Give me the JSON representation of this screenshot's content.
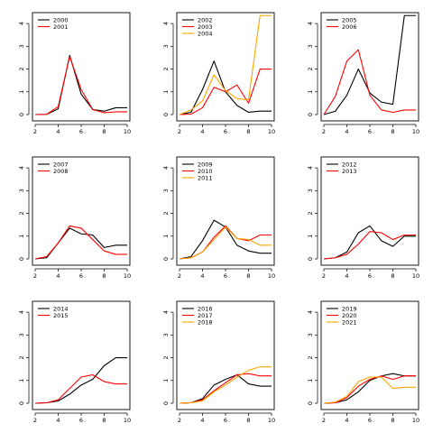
{
  "chart_data": [
    {
      "type": "line",
      "x": [
        2,
        3,
        4,
        5,
        6,
        7,
        8,
        9,
        10
      ],
      "xlim": [
        2,
        10
      ],
      "ylim": [
        0,
        4.4
      ],
      "xticks": [
        "2",
        "4",
        "6",
        "8",
        "10"
      ],
      "yticks": [
        "0",
        "1",
        "2",
        "3",
        "4"
      ],
      "legend_position": "top-left",
      "series": [
        {
          "name": "2000",
          "color": "#000000",
          "values": [
            0,
            0.01,
            0.25,
            2.6,
            0.9,
            0.22,
            0.15,
            0.3,
            0.3
          ]
        },
        {
          "name": "2001",
          "color": "#ff0000",
          "values": [
            0,
            0.01,
            0.35,
            2.55,
            1.1,
            0.22,
            0.08,
            0.12,
            0.12
          ]
        }
      ]
    },
    {
      "type": "line",
      "x": [
        2,
        3,
        4,
        5,
        6,
        7,
        8,
        9,
        10
      ],
      "xlim": [
        2,
        10
      ],
      "ylim": [
        0,
        4.4
      ],
      "xticks": [
        "2",
        "4",
        "6",
        "8",
        "10"
      ],
      "yticks": [
        "0",
        "1",
        "2",
        "3",
        "4"
      ],
      "legend_position": "top-left",
      "series": [
        {
          "name": "2002",
          "color": "#000000",
          "values": [
            0,
            0.1,
            1.1,
            2.35,
            1.0,
            0.4,
            0.1,
            0.15,
            0.15
          ]
        },
        {
          "name": "2003",
          "color": "#ff0000",
          "values": [
            0,
            0.02,
            0.3,
            1.2,
            1.0,
            1.3,
            0.5,
            2.0,
            2.0
          ]
        },
        {
          "name": "2004",
          "color": "#ffa500",
          "values": [
            0,
            0.2,
            0.6,
            1.75,
            1.05,
            0.7,
            0.65,
            4.35,
            4.35
          ]
        }
      ]
    },
    {
      "type": "line",
      "x": [
        2,
        3,
        4,
        5,
        6,
        7,
        8,
        9,
        10
      ],
      "xlim": [
        2,
        10
      ],
      "ylim": [
        0,
        4.4
      ],
      "xticks": [
        "2",
        "4",
        "6",
        "8",
        "10"
      ],
      "yticks": [
        "0",
        "1",
        "2",
        "3",
        "4"
      ],
      "legend_position": "top-left",
      "series": [
        {
          "name": "2005",
          "color": "#000000",
          "values": [
            0,
            0.15,
            0.85,
            2.0,
            0.95,
            0.55,
            0.45,
            4.35,
            4.35
          ]
        },
        {
          "name": "2006",
          "color": "#ff0000",
          "values": [
            0,
            0.8,
            2.35,
            2.85,
            0.85,
            0.2,
            0.1,
            0.2,
            0.2
          ]
        }
      ]
    },
    {
      "type": "line",
      "x": [
        2,
        3,
        4,
        5,
        6,
        7,
        8,
        9,
        10
      ],
      "xlim": [
        2,
        10
      ],
      "ylim": [
        0,
        4.4
      ],
      "xticks": [
        "2",
        "4",
        "6",
        "8",
        "10"
      ],
      "yticks": [
        "0",
        "1",
        "2",
        "3",
        "4"
      ],
      "legend_position": "top-left",
      "series": [
        {
          "name": "2007",
          "color": "#000000",
          "values": [
            0,
            0.05,
            0.7,
            1.35,
            1.1,
            1.05,
            0.5,
            0.6,
            0.6
          ]
        },
        {
          "name": "2008",
          "color": "#ff0000",
          "values": [
            0,
            0.1,
            0.7,
            1.45,
            1.35,
            0.85,
            0.35,
            0.2,
            0.2
          ]
        }
      ]
    },
    {
      "type": "line",
      "x": [
        2,
        3,
        4,
        5,
        6,
        7,
        8,
        9,
        10
      ],
      "xlim": [
        2,
        10
      ],
      "ylim": [
        0,
        4.4
      ],
      "xticks": [
        "2",
        "4",
        "6",
        "8",
        "10"
      ],
      "yticks": [
        "0",
        "1",
        "2",
        "3",
        "4"
      ],
      "legend_position": "top-left",
      "series": [
        {
          "name": "2009",
          "color": "#000000",
          "values": [
            0,
            0.1,
            0.8,
            1.7,
            1.4,
            0.6,
            0.35,
            0.25,
            0.25
          ]
        },
        {
          "name": "2010",
          "color": "#ff0000",
          "values": [
            0,
            0.05,
            0.3,
            0.95,
            1.45,
            0.9,
            0.8,
            1.05,
            1.05
          ]
        },
        {
          "name": "2011",
          "color": "#ffa500",
          "values": [
            0,
            0.05,
            0.3,
            0.85,
            1.4,
            0.9,
            0.85,
            0.6,
            0.6
          ]
        }
      ]
    },
    {
      "type": "line",
      "x": [
        2,
        3,
        4,
        5,
        6,
        7,
        8,
        9,
        10
      ],
      "xlim": [
        2,
        10
      ],
      "ylim": [
        0,
        4.4
      ],
      "xticks": [
        "2",
        "4",
        "6",
        "8",
        "10"
      ],
      "yticks": [
        "0",
        "1",
        "2",
        "3",
        "4"
      ],
      "legend_position": "top-left",
      "series": [
        {
          "name": "2012",
          "color": "#000000",
          "values": [
            0,
            0.05,
            0.3,
            1.15,
            1.45,
            0.8,
            0.55,
            1.0,
            1.0
          ]
        },
        {
          "name": "2013",
          "color": "#ff0000",
          "values": [
            0,
            0.05,
            0.2,
            0.65,
            1.2,
            1.15,
            0.85,
            1.05,
            1.05
          ]
        }
      ]
    },
    {
      "type": "line",
      "x": [
        2,
        3,
        4,
        5,
        6,
        7,
        8,
        9,
        10
      ],
      "xlim": [
        2,
        10
      ],
      "ylim": [
        0,
        4.4
      ],
      "xticks": [
        "2",
        "4",
        "6",
        "8",
        "10"
      ],
      "yticks": [
        "0",
        "1",
        "2",
        "3",
        "4"
      ],
      "legend_position": "top-left",
      "series": [
        {
          "name": "2014",
          "color": "#000000",
          "values": [
            0,
            0.02,
            0.1,
            0.4,
            0.8,
            1.05,
            1.65,
            2.0,
            2.0
          ]
        },
        {
          "name": "2015",
          "color": "#ff0000",
          "values": [
            0,
            0.02,
            0.15,
            0.65,
            1.15,
            1.25,
            0.95,
            0.85,
            0.85
          ]
        }
      ]
    },
    {
      "type": "line",
      "x": [
        2,
        3,
        4,
        5,
        6,
        7,
        8,
        9,
        10
      ],
      "xlim": [
        2,
        10
      ],
      "ylim": [
        0,
        4.4
      ],
      "xticks": [
        "2",
        "4",
        "6",
        "8",
        "10"
      ],
      "yticks": [
        "0",
        "1",
        "2",
        "3",
        "4"
      ],
      "legend_position": "top-left",
      "series": [
        {
          "name": "2016",
          "color": "#000000",
          "values": [
            0,
            0.02,
            0.2,
            0.8,
            1.05,
            1.25,
            0.85,
            0.75,
            0.75
          ]
        },
        {
          "name": "2017",
          "color": "#ff0000",
          "values": [
            0,
            0.02,
            0.15,
            0.55,
            0.9,
            1.25,
            1.3,
            1.2,
            1.2
          ]
        },
        {
          "name": "2018",
          "color": "#ffa500",
          "values": [
            0,
            0.02,
            0.1,
            0.5,
            0.8,
            1.15,
            1.45,
            1.6,
            1.6
          ]
        }
      ]
    },
    {
      "type": "line",
      "x": [
        2,
        3,
        4,
        5,
        6,
        7,
        8,
        9,
        10
      ],
      "xlim": [
        2,
        10
      ],
      "ylim": [
        0,
        4.4
      ],
      "xticks": [
        "2",
        "4",
        "6",
        "8",
        "10"
      ],
      "yticks": [
        "0",
        "1",
        "2",
        "3",
        "4"
      ],
      "legend_position": "top-left",
      "series": [
        {
          "name": "2019",
          "color": "#000000",
          "values": [
            0,
            0.02,
            0.15,
            0.5,
            1.0,
            1.2,
            1.3,
            1.2,
            1.2
          ]
        },
        {
          "name": "2020",
          "color": "#ff0000",
          "values": [
            0,
            0.02,
            0.25,
            0.75,
            1.05,
            1.2,
            1.05,
            1.2,
            1.2
          ]
        },
        {
          "name": "2021",
          "color": "#ffa500",
          "values": [
            0,
            0.05,
            0.3,
            0.95,
            1.15,
            1.15,
            0.65,
            0.7,
            0.7
          ]
        }
      ]
    }
  ]
}
